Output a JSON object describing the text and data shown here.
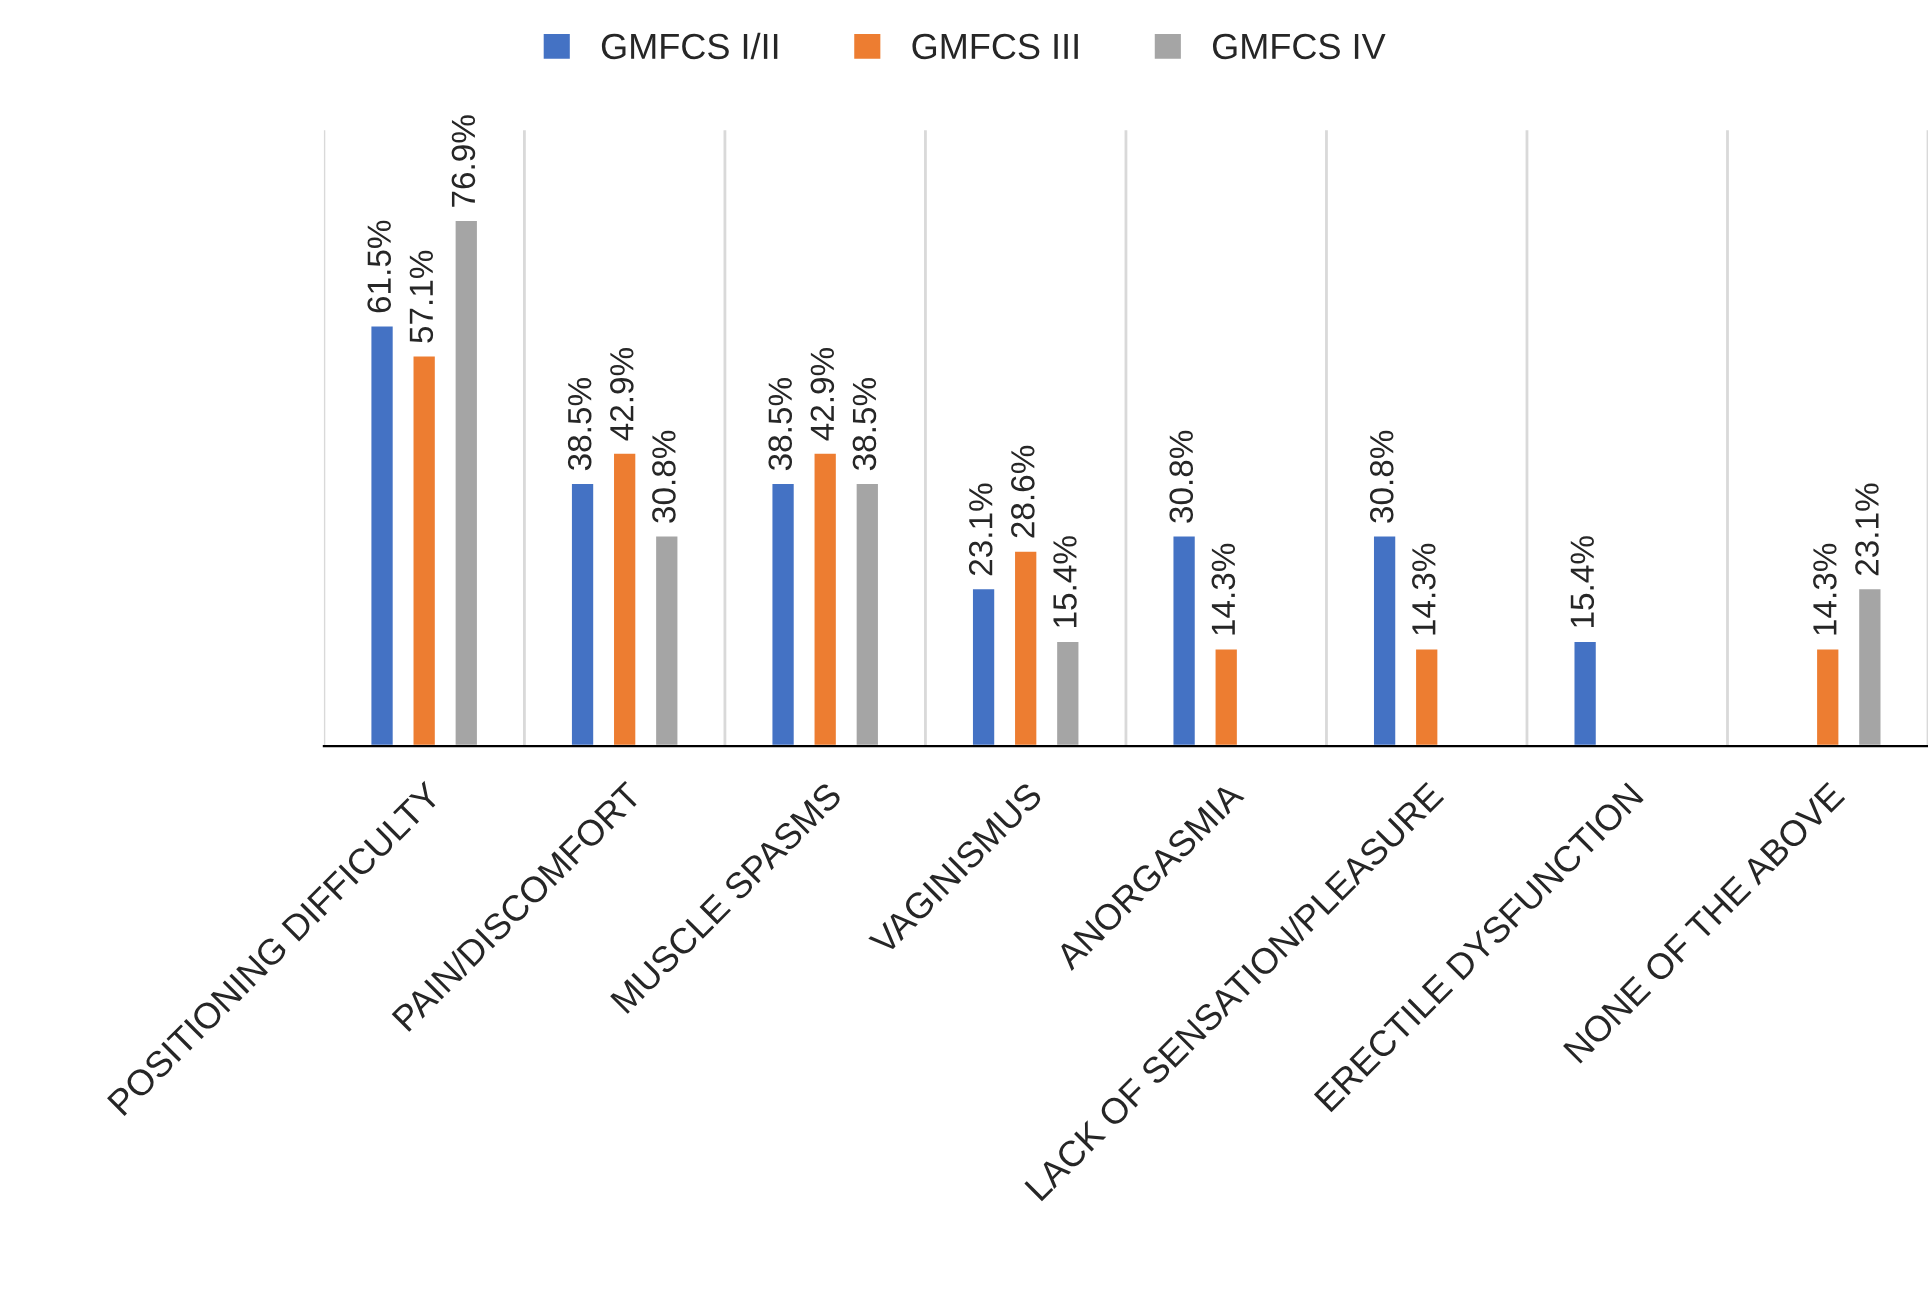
{
  "chart_data": {
    "type": "bar",
    "categories": [
      "POSITIONING DIFFICULTY",
      "PAIN/DISCOMFORT",
      "MUSCLE SPASMS",
      "VAGINISMUS",
      "ANORGASMIA",
      "LACK OF SENSATION/PLEASURE",
      "ERECTILE DYSFUNCTION",
      "NONE OF THE ABOVE"
    ],
    "series": [
      {
        "name": "GMFCS I/II",
        "color": "#4472c4",
        "values": [
          61.5,
          38.5,
          38.5,
          23.1,
          30.8,
          30.8,
          15.4,
          null
        ],
        "value_labels": [
          "61.5%",
          "38.5%",
          "38.5%",
          "23.1%",
          "30.8%",
          "30.8%",
          "15.4%",
          null
        ]
      },
      {
        "name": "GMFCS III",
        "color": "#ed7d31",
        "values": [
          57.1,
          42.9,
          42.9,
          28.6,
          14.3,
          14.3,
          null,
          14.3
        ],
        "value_labels": [
          "57.1%",
          "42.9%",
          "42.9%",
          "28.6%",
          "14.3%",
          "14.3%",
          null,
          "14.3%"
        ]
      },
      {
        "name": "GMFCS IV",
        "color": "#a5a5a5",
        "values": [
          76.9,
          30.8,
          38.5,
          15.4,
          null,
          null,
          null,
          23.1
        ],
        "value_labels": [
          "76.9%",
          "30.8%",
          "38.5%",
          "15.4%",
          null,
          null,
          null,
          "23.1%"
        ]
      }
    ],
    "grid": "x",
    "legend": "top",
    "tick_labels": "x"
  }
}
